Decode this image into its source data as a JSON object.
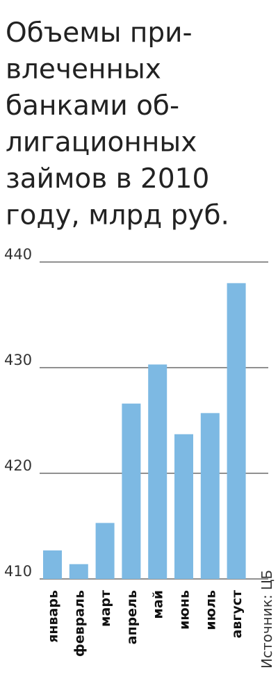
{
  "chart_data": {
    "type": "bar",
    "title": [
      "Объемы при-",
      "влеченных",
      "банками об-",
      "лигационных",
      "займов в 2010",
      "году, млрд руб."
    ],
    "categories": [
      "январь",
      "февраль",
      "март",
      "апрель",
      "май",
      "июнь",
      "июль",
      "август"
    ],
    "values": [
      412.7,
      411.4,
      415.3,
      426.6,
      430.3,
      423.7,
      425.7,
      438.0
    ],
    "color": "#7db9e3",
    "ylim": [
      410,
      440
    ],
    "yticks": [
      410,
      420,
      430,
      440
    ],
    "grid": true,
    "source": "Источник: ЦБ"
  }
}
